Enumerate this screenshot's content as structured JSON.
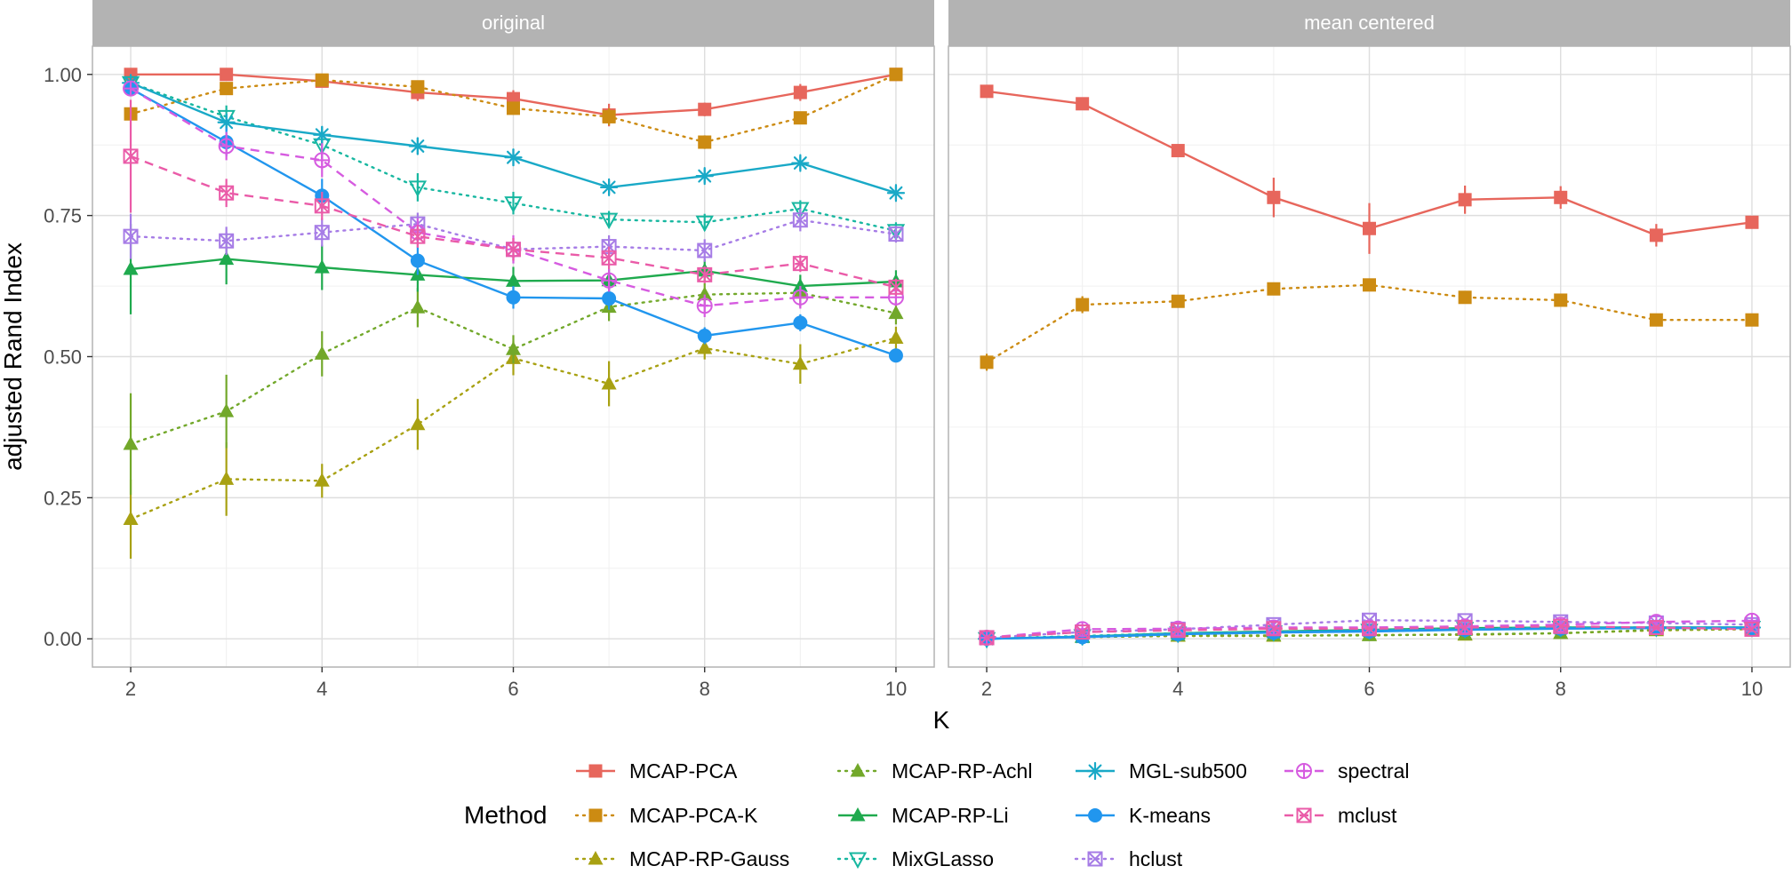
{
  "chart_data": {
    "type": "line",
    "xlabel": "K",
    "ylabel": "adjusted Rand Index",
    "x": [
      2,
      3,
      4,
      5,
      6,
      7,
      8,
      9,
      10
    ],
    "xlim": [
      1.6,
      10.4
    ],
    "ylim": [
      -0.05,
      1.05
    ],
    "x_ticks": [
      2,
      4,
      6,
      8,
      10
    ],
    "y_ticks": [
      0.0,
      0.25,
      0.5,
      0.75,
      1.0
    ],
    "y_tick_labels": [
      "0.00",
      "0.25",
      "0.50",
      "0.75",
      "1.00"
    ],
    "grid": true,
    "legend": {
      "title": "Method",
      "placement": "bottom",
      "columns": [
        [
          "MCAP-PCA",
          "MCAP-PCA-K",
          "MCAP-RP-Gauss"
        ],
        [
          "MCAP-RP-Achl",
          "MCAP-RP-Li",
          "MixGLasso"
        ],
        [
          "MGL-sub500",
          "K-means",
          "hclust"
        ],
        [
          "spectral",
          "mclust"
        ]
      ]
    },
    "series_styles": {
      "MCAP-PCA": {
        "color": "#E7665C",
        "dash": "solid",
        "marker": "square"
      },
      "MCAP-PCA-K": {
        "color": "#CC8B12",
        "dash": "dotted",
        "marker": "square"
      },
      "MCAP-RP-Gauss": {
        "color": "#A8A112",
        "dash": "dotted",
        "marker": "triangle"
      },
      "MCAP-RP-Achl": {
        "color": "#72A82A",
        "dash": "dotted",
        "marker": "triangle"
      },
      "MCAP-RP-Li": {
        "color": "#1FAA4E",
        "dash": "solid",
        "marker": "triangle"
      },
      "MixGLasso": {
        "color": "#17B7A0",
        "dash": "dotted",
        "marker": "triangle-down-open"
      },
      "MGL-sub500": {
        "color": "#19A9C7",
        "dash": "solid",
        "marker": "asterisk"
      },
      "K-means": {
        "color": "#2196EE",
        "dash": "solid",
        "marker": "circle"
      },
      "hclust": {
        "color": "#A67CE6",
        "dash": "dotted",
        "marker": "square-cross"
      },
      "spectral": {
        "color": "#D65BE0",
        "dash": "dashed",
        "marker": "circle-plus"
      },
      "mclust": {
        "color": "#EA5BA8",
        "dash": "dashed",
        "marker": "square-x"
      }
    },
    "panels": [
      {
        "title": "original",
        "series": [
          {
            "name": "MCAP-PCA",
            "values": [
              1.0,
              1.0,
              0.988,
              0.968,
              0.957,
              0.928,
              0.938,
              0.968,
              1.0
            ],
            "error": [
              0.006,
              0.005,
              0.008,
              0.015,
              0.015,
              0.02,
              0.012,
              0.015,
              0.005
            ]
          },
          {
            "name": "MCAP-PCA-K",
            "values": [
              0.93,
              0.975,
              0.99,
              0.978,
              0.94,
              0.925,
              0.88,
              0.923,
              1.0
            ],
            "error": [
              0.01,
              0.01,
              0.008,
              0.01,
              0.01,
              0.015,
              0.012,
              0.01,
              0.005
            ]
          },
          {
            "name": "MCAP-RP-Gauss",
            "values": [
              0.212,
              0.283,
              0.28,
              0.38,
              0.497,
              0.452,
              0.515,
              0.487,
              0.533
            ],
            "error": [
              0.07,
              0.065,
              0.03,
              0.045,
              0.03,
              0.04,
              0.02,
              0.035,
              0.02
            ]
          },
          {
            "name": "MCAP-RP-Achl",
            "values": [
              0.345,
              0.403,
              0.505,
              0.587,
              0.513,
              0.588,
              0.61,
              0.613,
              0.577
            ],
            "error": [
              0.09,
              0.065,
              0.04,
              0.035,
              0.025,
              0.025,
              0.02,
              0.025,
              0.02
            ]
          },
          {
            "name": "MCAP-RP-Li",
            "values": [
              0.655,
              0.673,
              0.658,
              0.645,
              0.634,
              0.635,
              0.652,
              0.625,
              0.633
            ],
            "error": [
              0.08,
              0.045,
              0.04,
              0.03,
              0.025,
              0.02,
              0.02,
              0.02,
              0.02
            ]
          },
          {
            "name": "MixGLasso",
            "values": [
              0.985,
              0.925,
              0.875,
              0.8,
              0.772,
              0.743,
              0.738,
              0.762,
              0.723
            ],
            "error": [
              0.008,
              0.02,
              0.025,
              0.025,
              0.02,
              0.015,
              0.015,
              0.015,
              0.015
            ]
          },
          {
            "name": "MGL-sub500",
            "values": [
              0.985,
              0.915,
              0.893,
              0.873,
              0.853,
              0.8,
              0.82,
              0.843,
              0.79
            ],
            "error": [
              0.008,
              0.015,
              0.015,
              0.015,
              0.015,
              0.012,
              0.012,
              0.012,
              0.012
            ]
          },
          {
            "name": "K-means",
            "values": [
              0.975,
              0.88,
              0.785,
              0.67,
              0.605,
              0.603,
              0.537,
              0.56,
              0.502
            ],
            "error": [
              0.01,
              0.025,
              0.03,
              0.025,
              0.02,
              0.02,
              0.015,
              0.015,
              0.012
            ]
          },
          {
            "name": "hclust",
            "values": [
              0.713,
              0.705,
              0.72,
              0.735,
              0.69,
              0.695,
              0.688,
              0.742,
              0.717
            ],
            "error": [
              0.04,
              0.025,
              0.025,
              0.02,
              0.02,
              0.02,
              0.02,
              0.02,
              0.015
            ]
          },
          {
            "name": "spectral",
            "values": [
              0.975,
              0.873,
              0.848,
              0.72,
              0.69,
              0.635,
              0.59,
              0.605,
              0.605
            ],
            "error": [
              0.01,
              0.025,
              0.03,
              0.025,
              0.025,
              0.02,
              0.02,
              0.02,
              0.015
            ]
          },
          {
            "name": "mclust",
            "values": [
              0.855,
              0.79,
              0.767,
              0.713,
              0.69,
              0.675,
              0.645,
              0.665,
              0.623
            ],
            "error": [
              0.1,
              0.025,
              0.025,
              0.02,
              0.02,
              0.02,
              0.015,
              0.015,
              0.015
            ]
          }
        ]
      },
      {
        "title": "mean centered",
        "series": [
          {
            "name": "MCAP-PCA",
            "values": [
              0.97,
              0.948,
              0.865,
              0.782,
              0.727,
              0.778,
              0.782,
              0.715,
              0.738
            ],
            "error": [
              0.008,
              0.01,
              0.01,
              0.035,
              0.045,
              0.025,
              0.02,
              0.02,
              0.01
            ]
          },
          {
            "name": "MCAP-PCA-K",
            "values": [
              0.49,
              0.592,
              0.598,
              0.62,
              0.627,
              0.605,
              0.6,
              0.565,
              0.565
            ],
            "error": [
              0.015,
              0.015,
              0.01,
              0.01,
              0.01,
              0.01,
              0.01,
              0.01,
              0.01
            ]
          },
          {
            "name": "MCAP-RP-Gauss",
            "values": [
              0.002,
              0.003,
              0.005,
              0.005,
              0.007,
              0.007,
              0.01,
              0.015,
              0.017
            ],
            "error": [
              0.003,
              0.003,
              0.003,
              0.003,
              0.003,
              0.003,
              0.003,
              0.003,
              0.003
            ]
          },
          {
            "name": "MCAP-RP-Achl",
            "values": [
              0.002,
              0.003,
              0.006,
              0.006,
              0.006,
              0.008,
              0.01,
              0.016,
              0.018
            ],
            "error": [
              0.003,
              0.003,
              0.003,
              0.003,
              0.003,
              0.003,
              0.003,
              0.003,
              0.003
            ]
          },
          {
            "name": "MCAP-RP-Li",
            "values": [
              0.0,
              0.004,
              0.01,
              0.013,
              0.016,
              0.019,
              0.02,
              0.02,
              0.02
            ],
            "error": [
              0.003,
              0.003,
              0.003,
              0.003,
              0.003,
              0.003,
              0.003,
              0.003,
              0.003
            ]
          },
          {
            "name": "MixGLasso",
            "values": [
              0.0,
              0.005,
              0.01,
              0.012,
              0.015,
              0.018,
              0.02,
              0.02,
              0.02
            ],
            "error": [
              0.003,
              0.003,
              0.003,
              0.003,
              0.003,
              0.003,
              0.003,
              0.003,
              0.003
            ]
          },
          {
            "name": "MGL-sub500",
            "values": [
              0.0,
              0.004,
              0.009,
              0.012,
              0.015,
              0.017,
              0.019,
              0.02,
              0.02
            ],
            "error": [
              0.003,
              0.003,
              0.003,
              0.003,
              0.003,
              0.003,
              0.003,
              0.003,
              0.003
            ]
          },
          {
            "name": "K-means",
            "values": [
              0.0,
              0.003,
              0.008,
              0.011,
              0.013,
              0.016,
              0.018,
              0.019,
              0.019
            ],
            "error": [
              0.003,
              0.003,
              0.003,
              0.003,
              0.003,
              0.003,
              0.003,
              0.003,
              0.003
            ]
          },
          {
            "name": "hclust",
            "values": [
              0.002,
              0.012,
              0.017,
              0.025,
              0.033,
              0.032,
              0.03,
              0.028,
              0.025
            ],
            "error": [
              0.003,
              0.003,
              0.003,
              0.003,
              0.003,
              0.003,
              0.003,
              0.003,
              0.003
            ]
          },
          {
            "name": "spectral",
            "values": [
              0.002,
              0.017,
              0.018,
              0.02,
              0.02,
              0.022,
              0.025,
              0.03,
              0.032
            ],
            "error": [
              0.003,
              0.003,
              0.003,
              0.003,
              0.003,
              0.003,
              0.003,
              0.003,
              0.003
            ]
          },
          {
            "name": "mclust",
            "values": [
              0.002,
              0.012,
              0.015,
              0.018,
              0.018,
              0.02,
              0.022,
              0.02,
              0.017
            ],
            "error": [
              0.003,
              0.003,
              0.003,
              0.003,
              0.003,
              0.003,
              0.003,
              0.003,
              0.003
            ]
          }
        ]
      }
    ]
  }
}
